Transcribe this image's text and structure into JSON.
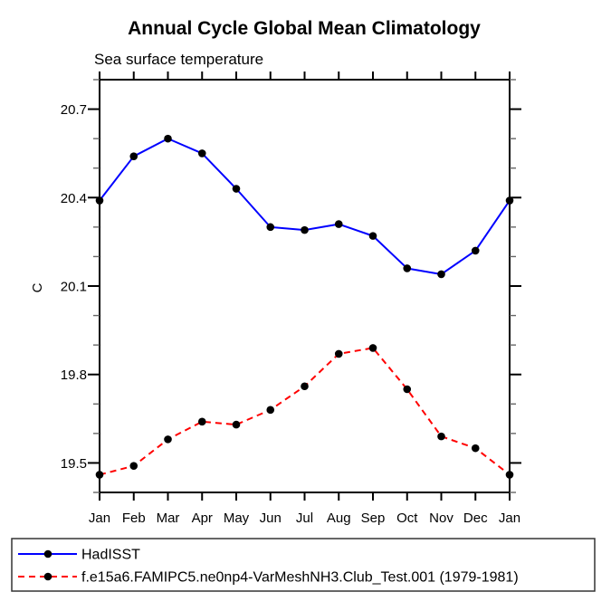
{
  "title": "Annual Cycle Global Mean Climatology",
  "subtitle": "Sea surface temperature",
  "chart_data": {
    "type": "line",
    "categories": [
      "Jan",
      "Feb",
      "Mar",
      "Apr",
      "May",
      "Jun",
      "Jul",
      "Aug",
      "Sep",
      "Oct",
      "Nov",
      "Dec",
      "Jan"
    ],
    "xlabel": "",
    "ylabel": "C",
    "ylim": [
      19.4,
      20.8
    ],
    "y_major_ticks": [
      19.5,
      19.8,
      20.1,
      20.4,
      20.7
    ],
    "y_minor_tick_step": 0.1,
    "grid": false,
    "legend_position": "bottom-left-box",
    "series": [
      {
        "name": "HadISST",
        "color": "#0000ff",
        "line_style": "solid",
        "marker": "filled-circle",
        "marker_color": "#000000",
        "values": [
          20.39,
          20.54,
          20.6,
          20.55,
          20.43,
          20.3,
          20.29,
          20.31,
          20.27,
          20.16,
          20.14,
          20.22,
          20.39
        ]
      },
      {
        "name": "f.e15a6.FAMIPC5.ne0np4-VarMeshNH3.Club_Test.001 (1979-1981)",
        "color": "#ff0000",
        "line_style": "dashed",
        "marker": "filled-circle",
        "marker_color": "#000000",
        "values": [
          19.46,
          19.49,
          19.58,
          19.64,
          19.63,
          19.68,
          19.76,
          19.87,
          19.89,
          19.75,
          19.59,
          19.55,
          19.46
        ]
      }
    ]
  },
  "colors": {
    "background": "#ffffff",
    "axis": "#000000",
    "minor_tick": "#666666",
    "series_blue": "#0000ff",
    "series_red": "#ff0000",
    "marker": "#000000",
    "legend_border": "#333333"
  }
}
